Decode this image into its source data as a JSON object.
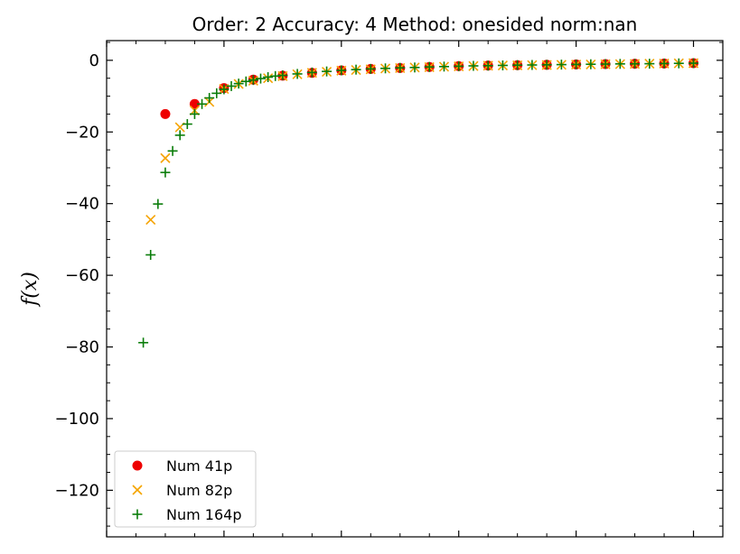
{
  "chart_data": {
    "type": "scatter",
    "title": "Order: 2 Accuracy: 4 Method: onesided norm:nan",
    "xlabel": "",
    "ylabel": "f(x)",
    "xlim": [
      0.0,
      1.05
    ],
    "ylim": [
      -133,
      5.5
    ],
    "yticks": [
      0,
      -20,
      -40,
      -60,
      -80,
      -100,
      -120
    ],
    "ytick_labels": [
      "0",
      "−20",
      "−40",
      "−60",
      "−80",
      "−100",
      "−120"
    ],
    "legend_position": "lower left",
    "grid": false,
    "series": [
      {
        "name": "Num 41p",
        "marker": "circle",
        "color": "#ee0000",
        "x": [
          0.1,
          0.15,
          0.2,
          0.25,
          0.3,
          0.35,
          0.4,
          0.45,
          0.5,
          0.55,
          0.6,
          0.65,
          0.7,
          0.75,
          0.8,
          0.85,
          0.9,
          0.95,
          1.0
        ],
        "y": [
          -15.0,
          -12.2,
          -7.75,
          -5.4,
          -4.3,
          -3.5,
          -2.8,
          -2.4,
          -2.15,
          -1.85,
          -1.6,
          -1.45,
          -1.35,
          -1.25,
          -1.15,
          -1.05,
          -0.95,
          -0.9,
          -0.8
        ]
      },
      {
        "name": "Num 82p",
        "marker": "x",
        "color": "#f5a300",
        "x": [
          0.075,
          0.1,
          0.125,
          0.15,
          0.175,
          0.2,
          0.225,
          0.25,
          0.275,
          0.3,
          0.325,
          0.35,
          0.375,
          0.4,
          0.425,
          0.45,
          0.475,
          0.5,
          0.525,
          0.55,
          0.575,
          0.6,
          0.625,
          0.65,
          0.675,
          0.7,
          0.725,
          0.75,
          0.775,
          0.8,
          0.825,
          0.85,
          0.875,
          0.9,
          0.925,
          0.95,
          0.975,
          1.0
        ],
        "y": [
          -44.5,
          -27.3,
          -18.7,
          -14.0,
          -11.6,
          -8.0,
          -6.6,
          -5.7,
          -5.0,
          -4.4,
          -3.9,
          -3.5,
          -3.2,
          -2.9,
          -2.7,
          -2.5,
          -2.3,
          -2.15,
          -2.0,
          -1.9,
          -1.8,
          -1.7,
          -1.6,
          -1.5,
          -1.45,
          -1.4,
          -1.35,
          -1.3,
          -1.25,
          -1.2,
          -1.15,
          -1.1,
          -1.05,
          -1.0,
          -0.95,
          -0.9,
          -0.85,
          -0.8
        ]
      },
      {
        "name": "Num 164p",
        "marker": "plus",
        "color": "#0a7d0a",
        "x": [
          0.0625,
          0.075,
          0.0875,
          0.1,
          0.1125,
          0.125,
          0.1375,
          0.15,
          0.1625,
          0.175,
          0.1875,
          0.2,
          0.2125,
          0.225,
          0.2375,
          0.25,
          0.2625,
          0.275,
          0.2875,
          0.3,
          0.325,
          0.35,
          0.375,
          0.4,
          0.425,
          0.45,
          0.475,
          0.5,
          0.525,
          0.55,
          0.575,
          0.6,
          0.625,
          0.65,
          0.675,
          0.7,
          0.725,
          0.75,
          0.775,
          0.8,
          0.825,
          0.85,
          0.875,
          0.9,
          0.925,
          0.95,
          0.975,
          1.0
        ],
        "y": [
          -78.8,
          -54.3,
          -40.1,
          -31.3,
          -25.3,
          -20.9,
          -17.8,
          -15.0,
          -12.2,
          -10.5,
          -9.2,
          -8.1,
          -7.2,
          -6.5,
          -5.9,
          -5.5,
          -5.1,
          -4.7,
          -4.4,
          -4.2,
          -3.8,
          -3.4,
          -3.1,
          -2.8,
          -2.6,
          -2.4,
          -2.25,
          -2.1,
          -2.0,
          -1.85,
          -1.75,
          -1.65,
          -1.55,
          -1.5,
          -1.42,
          -1.35,
          -1.3,
          -1.25,
          -1.2,
          -1.15,
          -1.1,
          -1.05,
          -1.0,
          -0.98,
          -0.95,
          -0.9,
          -0.85,
          -0.8
        ]
      }
    ]
  }
}
